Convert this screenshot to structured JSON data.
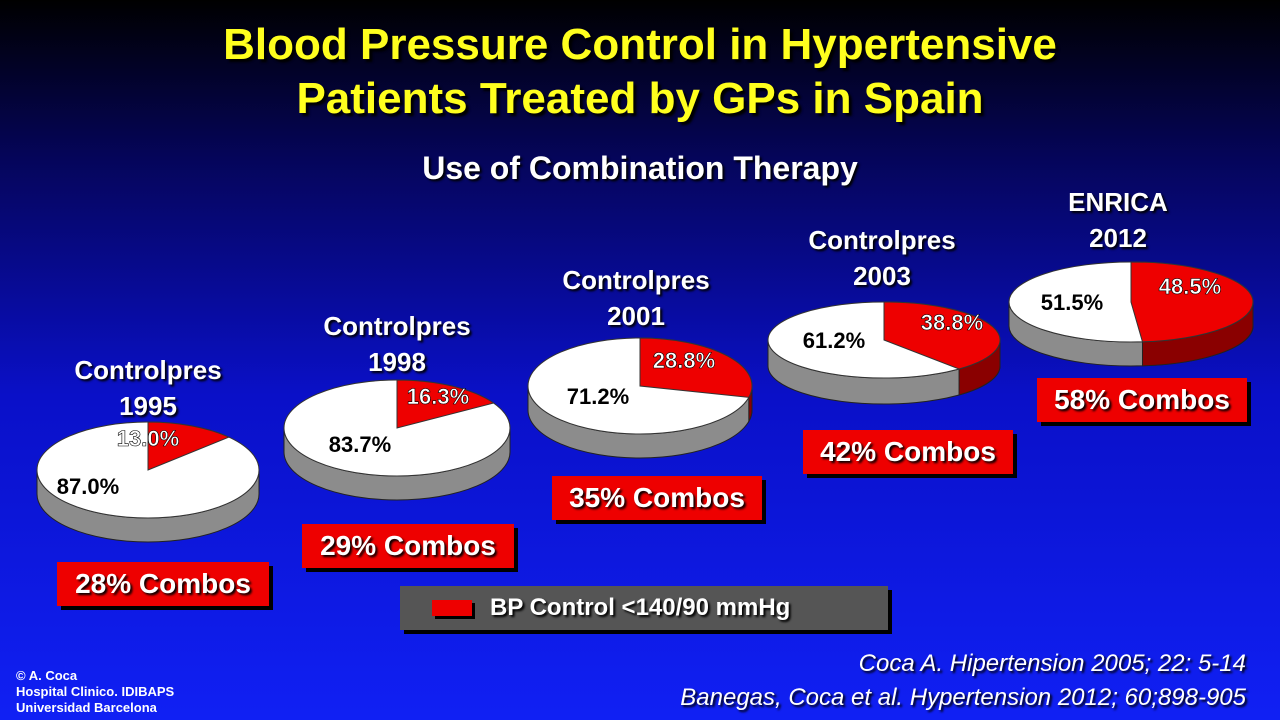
{
  "title": {
    "line1": "Blood Pressure Control in Hypertensive",
    "line2": "Patients Treated by GPs in Spain"
  },
  "subtitle": "Use of Combination Therapy",
  "colors": {
    "controlled": "#ee0000",
    "uncontrolled": "#ffffff",
    "title": "#ffff1e"
  },
  "chart_data": {
    "type": "pie",
    "title": "Blood Pressure Control in Hypertensive Patients Treated by GPs in Spain",
    "subtitle": "Use of Combination Therapy",
    "legend": {
      "entries": [
        "BP Control <140/90 mmHg"
      ],
      "placement": "bottom-center"
    },
    "pies": [
      {
        "study": "Controlpres",
        "year": "1995",
        "controlled": 13.0,
        "uncontrolled": 87.0,
        "controlled_label": "13.0%",
        "uncontrolled_label": "87.0%",
        "combos_label": "28% Combos"
      },
      {
        "study": "Controlpres",
        "year": "1998",
        "controlled": 16.3,
        "uncontrolled": 83.7,
        "controlled_label": "16.3%",
        "uncontrolled_label": "83.7%",
        "combos_label": "29% Combos"
      },
      {
        "study": "Controlpres",
        "year": "2001",
        "controlled": 28.8,
        "uncontrolled": 71.2,
        "controlled_label": "28.8%",
        "uncontrolled_label": "71.2%",
        "combos_label": "35% Combos"
      },
      {
        "study": "Controlpres",
        "year": "2003",
        "controlled": 38.8,
        "uncontrolled": 61.2,
        "controlled_label": "38.8%",
        "uncontrolled_label": "61.2%",
        "combos_label": "42% Combos"
      },
      {
        "study": "ENRICA",
        "year": "2012",
        "controlled": 48.5,
        "uncontrolled": 51.5,
        "controlled_label": "48.5%",
        "uncontrolled_label": "51.5%",
        "combos_label": "58% Combos"
      }
    ]
  },
  "credit": {
    "line1": "© A. Coca",
    "line2": "Hospital Clinico. IDIBAPS",
    "line3": "Universidad Barcelona"
  },
  "references": [
    "Coca A. Hipertension 2005; 22: 5-14",
    "Banegas, Coca et al. Hypertension 2012; 60;898-905"
  ]
}
